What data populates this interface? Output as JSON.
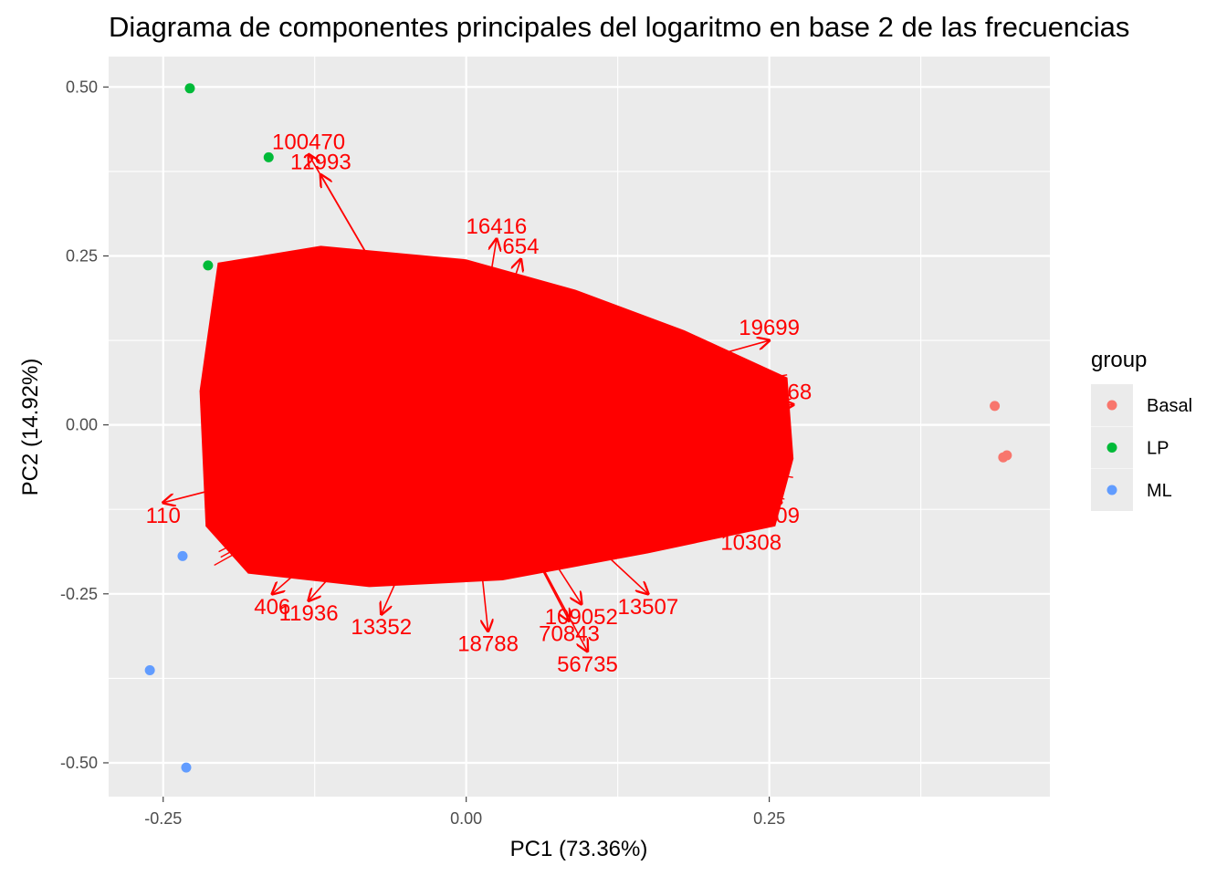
{
  "chart_data": {
    "type": "scatter",
    "title": "Diagrama de componentes principales del logaritmo en base 2 de las frecuencias",
    "xlabel": "PC1 (73.36%)",
    "ylabel": "PC2 (14.92%)",
    "xlim": [
      -0.295,
      0.4815
    ],
    "ylim": [
      -0.55,
      0.545
    ],
    "xticks": [
      -0.25,
      0,
      0.25
    ],
    "xtick_labels": [
      "-0.25",
      "0.00",
      "0.25"
    ],
    "yticks": [
      0.5,
      0.25,
      0,
      -0.25,
      -0.5
    ],
    "ytick_labels": [
      "0.50",
      "0.25",
      "0.00",
      "-0.25",
      "-0.50"
    ],
    "grid": true,
    "legend": {
      "title": "group",
      "position": "right",
      "entries": [
        {
          "label": "Basal",
          "color": "#F8766D"
        },
        {
          "label": "LP",
          "color": "#00BA38"
        },
        {
          "label": "ML",
          "color": "#619CFF"
        }
      ]
    },
    "series": [
      {
        "name": "Basal",
        "color": "#F8766D",
        "points": [
          [
            0.436,
            0.028
          ],
          [
            0.443,
            -0.048
          ],
          [
            0.446,
            -0.045
          ]
        ]
      },
      {
        "name": "LP",
        "color": "#00BA38",
        "points": [
          [
            -0.228,
            0.498
          ],
          [
            -0.163,
            0.396
          ],
          [
            -0.213,
            0.236
          ]
        ]
      },
      {
        "name": "ML",
        "color": "#619CFF",
        "points": [
          [
            -0.261,
            -0.363
          ],
          [
            -0.231,
            -0.507
          ],
          [
            -0.234,
            -0.194
          ]
        ]
      }
    ],
    "loadings": {
      "color": "#FF0000",
      "labeled": [
        {
          "label": "100470",
          "x": -0.13,
          "y": 0.4
        },
        {
          "label": "12993",
          "x": -0.12,
          "y": 0.37
        },
        {
          "label": "16416",
          "x": 0.025,
          "y": 0.275
        },
        {
          "label": "654",
          "x": 0.045,
          "y": 0.245
        },
        {
          "label": "19699",
          "x": 0.25,
          "y": 0.125
        },
        {
          "label": "268",
          "x": 0.27,
          "y": 0.03
        },
        {
          "label": "409",
          "x": 0.26,
          "y": -0.115
        },
        {
          "label": "10308",
          "x": 0.235,
          "y": -0.155
        },
        {
          "label": "13507",
          "x": 0.15,
          "y": -0.25
        },
        {
          "label": "109052",
          "x": 0.095,
          "y": -0.265
        },
        {
          "label": "70843",
          "x": 0.085,
          "y": -0.29
        },
        {
          "label": "56735",
          "x": 0.1,
          "y": -0.335
        },
        {
          "label": "18788",
          "x": 0.018,
          "y": -0.305
        },
        {
          "label": "110",
          "x": -0.25,
          "y": -0.115
        },
        {
          "label": "406",
          "x": -0.16,
          "y": -0.25
        },
        {
          "label": "11936",
          "x": -0.13,
          "y": -0.26
        },
        {
          "label": "13352",
          "x": -0.07,
          "y": -0.28
        }
      ]
    }
  }
}
